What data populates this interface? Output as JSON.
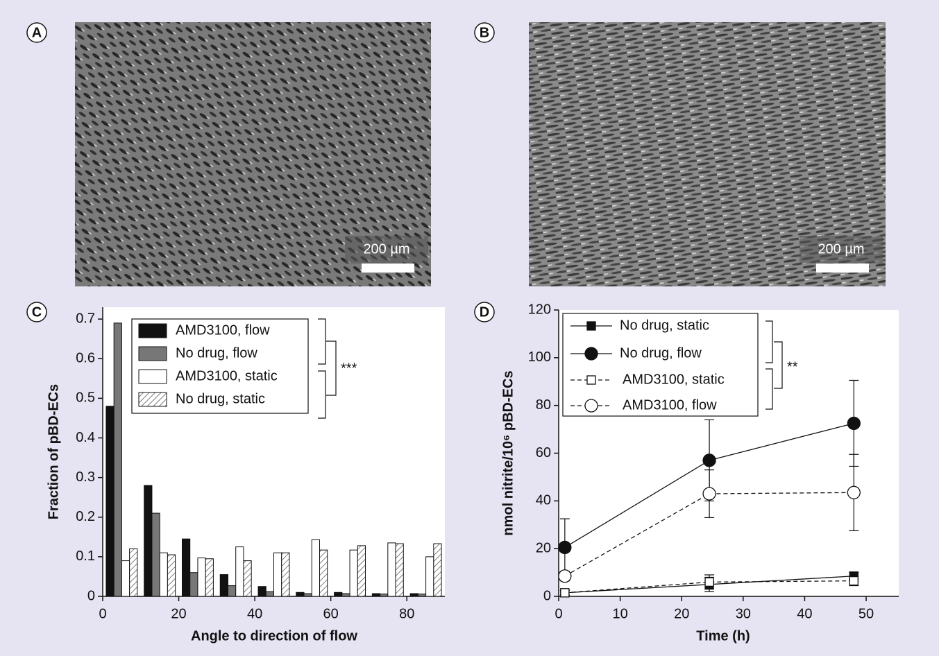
{
  "images": [
    {
      "panel": "A",
      "scale_bar": "200 µm"
    },
    {
      "panel": "B",
      "scale_bar": "200 µm"
    }
  ],
  "chart_data": [
    {
      "type": "bar",
      "panel": "C",
      "x_label": "Angle to direction of flow",
      "y_label": "Fraction of pBD-ECs",
      "x": [
        5,
        15,
        25,
        35,
        45,
        55,
        65,
        75,
        85
      ],
      "series": [
        {
          "name": "AMD3100, flow",
          "color": "#111111",
          "values": [
            0.48,
            0.28,
            0.145,
            0.055,
            0.025,
            0.01,
            0.01,
            0.007,
            0.007
          ]
        },
        {
          "name": "No drug, flow",
          "color": "#777777",
          "values": [
            0.69,
            0.21,
            0.06,
            0.027,
            0.012,
            0.007,
            0.007,
            0.006,
            0.006
          ]
        },
        {
          "name": "AMD3100, static",
          "color": "#ffffff",
          "values": [
            0.09,
            0.11,
            0.097,
            0.125,
            0.11,
            0.143,
            0.117,
            0.135,
            0.1
          ]
        },
        {
          "name": "No drug, static",
          "color": "#ffffff",
          "hatch": true,
          "values": [
            0.12,
            0.105,
            0.095,
            0.09,
            0.11,
            0.117,
            0.128,
            0.133,
            0.133
          ]
        }
      ],
      "annotation": "***",
      "xlim": [
        0,
        90
      ],
      "xticks": [
        0,
        20,
        40,
        60,
        80
      ],
      "ylim": [
        0,
        0.73
      ],
      "yticks": [
        0,
        0.1,
        0.2,
        0.3,
        0.4,
        0.5,
        0.6,
        0.7
      ]
    },
    {
      "type": "line",
      "panel": "D",
      "x_label": "Time (h)",
      "y_label": "nmol nitrite/10⁶ pBD-ECs",
      "x": [
        1,
        24.5,
        48
      ],
      "series": [
        {
          "name": "No drug, static",
          "color": "#111111",
          "marker": "square",
          "filled": true,
          "dashed": false,
          "values": [
            1.5,
            5,
            8.5
          ],
          "errors": [
            1,
            3,
            1.5
          ]
        },
        {
          "name": "No drug, flow",
          "color": "#111111",
          "marker": "circle",
          "filled": true,
          "dashed": false,
          "values": [
            20.5,
            57,
            72.5
          ],
          "errors": [
            12,
            17,
            18
          ]
        },
        {
          "name": "AMD3100, static",
          "color": "#111111",
          "marker": "square",
          "filled": false,
          "dashed": true,
          "values": [
            1.5,
            6,
            6.5
          ],
          "errors": [
            1,
            3,
            2
          ]
        },
        {
          "name": "AMD3100, flow",
          "color": "#111111",
          "marker": "circle",
          "filled": false,
          "dashed": true,
          "values": [
            8.5,
            43,
            43.5
          ],
          "errors": [
            2,
            10,
            16
          ]
        }
      ],
      "annotation": "**",
      "xlim": [
        0,
        55.3
      ],
      "xticks": [
        0,
        10,
        20,
        30,
        40,
        50
      ],
      "ylim": [
        0,
        120
      ],
      "yticks": [
        0,
        20,
        40,
        60,
        80,
        100,
        120
      ]
    }
  ]
}
